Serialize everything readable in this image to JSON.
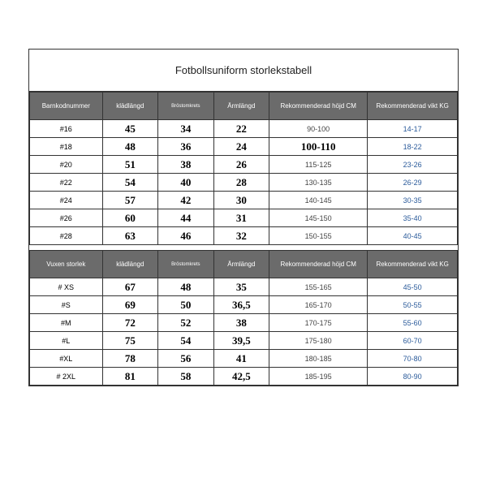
{
  "title": "Fotbollsuniform storlekstabell",
  "kids": {
    "headers": [
      "Barnkodnummer",
      "klädlängd",
      "Bröstomkrets",
      "Ärmlängd",
      "Rekommenderad höjd CM",
      "Rekommenderad vikt KG"
    ],
    "rows": [
      {
        "code": "#16",
        "l": "45",
        "b": "34",
        "a": "22",
        "h": "90-100",
        "w": "14-17",
        "bold": false
      },
      {
        "code": "#18",
        "l": "48",
        "b": "36",
        "a": "24",
        "h": "100-110",
        "w": "18-22",
        "bold": true
      },
      {
        "code": "#20",
        "l": "51",
        "b": "38",
        "a": "26",
        "h": "115-125",
        "w": "23-26",
        "bold": false
      },
      {
        "code": "#22",
        "l": "54",
        "b": "40",
        "a": "28",
        "h": "130-135",
        "w": "26-29",
        "bold": false
      },
      {
        "code": "#24",
        "l": "57",
        "b": "42",
        "a": "30",
        "h": "140-145",
        "w": "30-35",
        "bold": false
      },
      {
        "code": "#26",
        "l": "60",
        "b": "44",
        "a": "31",
        "h": "145-150",
        "w": "35-40",
        "bold": false
      },
      {
        "code": "#28",
        "l": "63",
        "b": "46",
        "a": "32",
        "h": "150-155",
        "w": "40-45",
        "bold": false
      }
    ]
  },
  "adult": {
    "headers": [
      "Vuxen storlek",
      "klädlängd",
      "Bröstomkrets",
      "Ärmlängd",
      "Rekommenderad höjd CM",
      "Rekommenderad vikt KG"
    ],
    "rows": [
      {
        "code": "# XS",
        "l": "67",
        "b": "48",
        "a": "35",
        "h": "155-165",
        "w": "45-50"
      },
      {
        "code": "#S",
        "l": "69",
        "b": "50",
        "a": "36,5",
        "h": "165-170",
        "w": "50-55"
      },
      {
        "code": "#M",
        "l": "72",
        "b": "52",
        "a": "38",
        "h": "170-175",
        "w": "55-60"
      },
      {
        "code": "#L",
        "l": "75",
        "b": "54",
        "a": "39,5",
        "h": "175-180",
        "w": "60-70"
      },
      {
        "code": "#XL",
        "l": "78",
        "b": "56",
        "a": "41",
        "h": "180-185",
        "w": "70-80"
      },
      {
        "code": "# 2XL",
        "l": "81",
        "b": "58",
        "a": "42,5",
        "h": "185-195",
        "w": "80-90"
      }
    ]
  }
}
